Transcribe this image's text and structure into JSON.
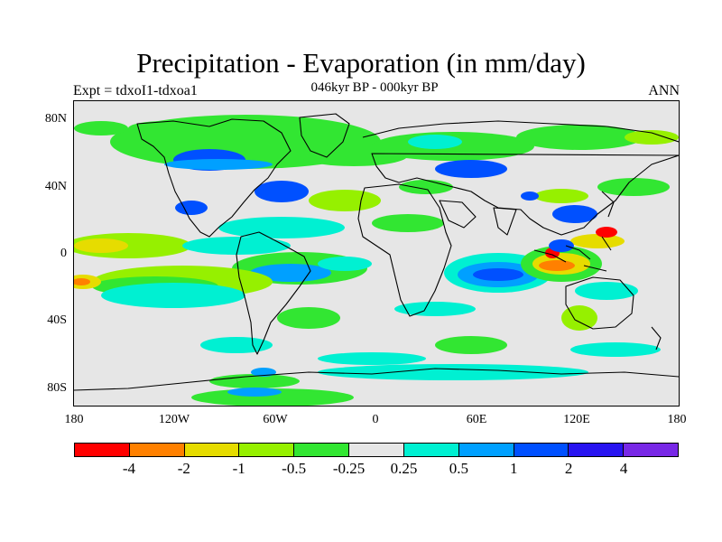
{
  "title": "Precipitation - Evaporation (in mm/day)",
  "subtitle": "046kyr BP - 000kyr BP",
  "left_label": "Expt = tdxoI1-tdxoa1",
  "right_label": "ANN",
  "lat_labels": [
    "80N",
    "40N",
    "0",
    "40S",
    "80S"
  ],
  "lon_labels": [
    "180",
    "120W",
    "60W",
    "0",
    "60E",
    "120E",
    "180"
  ],
  "colorbar": {
    "colors": [
      "#ff0000",
      "#ff8000",
      "#e6dc00",
      "#96f000",
      "#32e632",
      "#e6e6e6",
      "#00f0d2",
      "#00a0ff",
      "#0050ff",
      "#2814f0",
      "#7828e6"
    ],
    "labels": [
      "-4",
      "-2",
      "-1",
      "-0.5",
      "-0.25",
      "0.25",
      "0.5",
      "1",
      "2",
      "4"
    ]
  }
}
